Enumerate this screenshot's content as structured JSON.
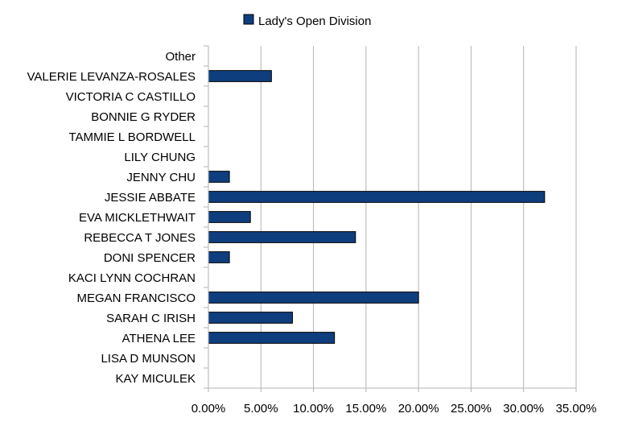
{
  "chart_data": {
    "type": "bar",
    "orientation": "horizontal",
    "categories": [
      "KAY MICULEK",
      "LISA D MUNSON",
      "ATHENA LEE",
      "SARAH C IRISH",
      "MEGAN FRANCISCO",
      "KACI LYNN COCHRAN",
      "DONI SPENCER",
      "REBECCA T JONES",
      "EVA MICKLETHWAIT",
      "JESSIE ABBATE",
      "JENNY CHU",
      "LILY CHUNG",
      "TAMMIE L BORDWELL",
      "BONNIE G RYDER",
      "VICTORIA C CASTILLO",
      "VALERIE LEVANZA-ROSALES",
      "Other"
    ],
    "series": [
      {
        "name": "Lady's Open Division",
        "values": [
          0,
          0,
          12,
          8,
          20,
          0,
          2,
          14,
          4,
          32,
          2,
          0,
          0,
          0,
          0,
          6,
          0
        ]
      }
    ],
    "xlim": [
      0,
      35
    ],
    "x_ticks": [
      "0.00%",
      "5.00%",
      "10.00%",
      "15.00%",
      "20.00%",
      "25.00%",
      "30.00%",
      "35.00%"
    ],
    "x_tick_values": [
      0,
      5,
      10,
      15,
      20,
      25,
      30,
      35
    ],
    "grid": true,
    "legend_position": "top",
    "bar_color": "#0f3e7e",
    "bar_outline": "#000000",
    "grid_color": "#b3b3b3"
  }
}
